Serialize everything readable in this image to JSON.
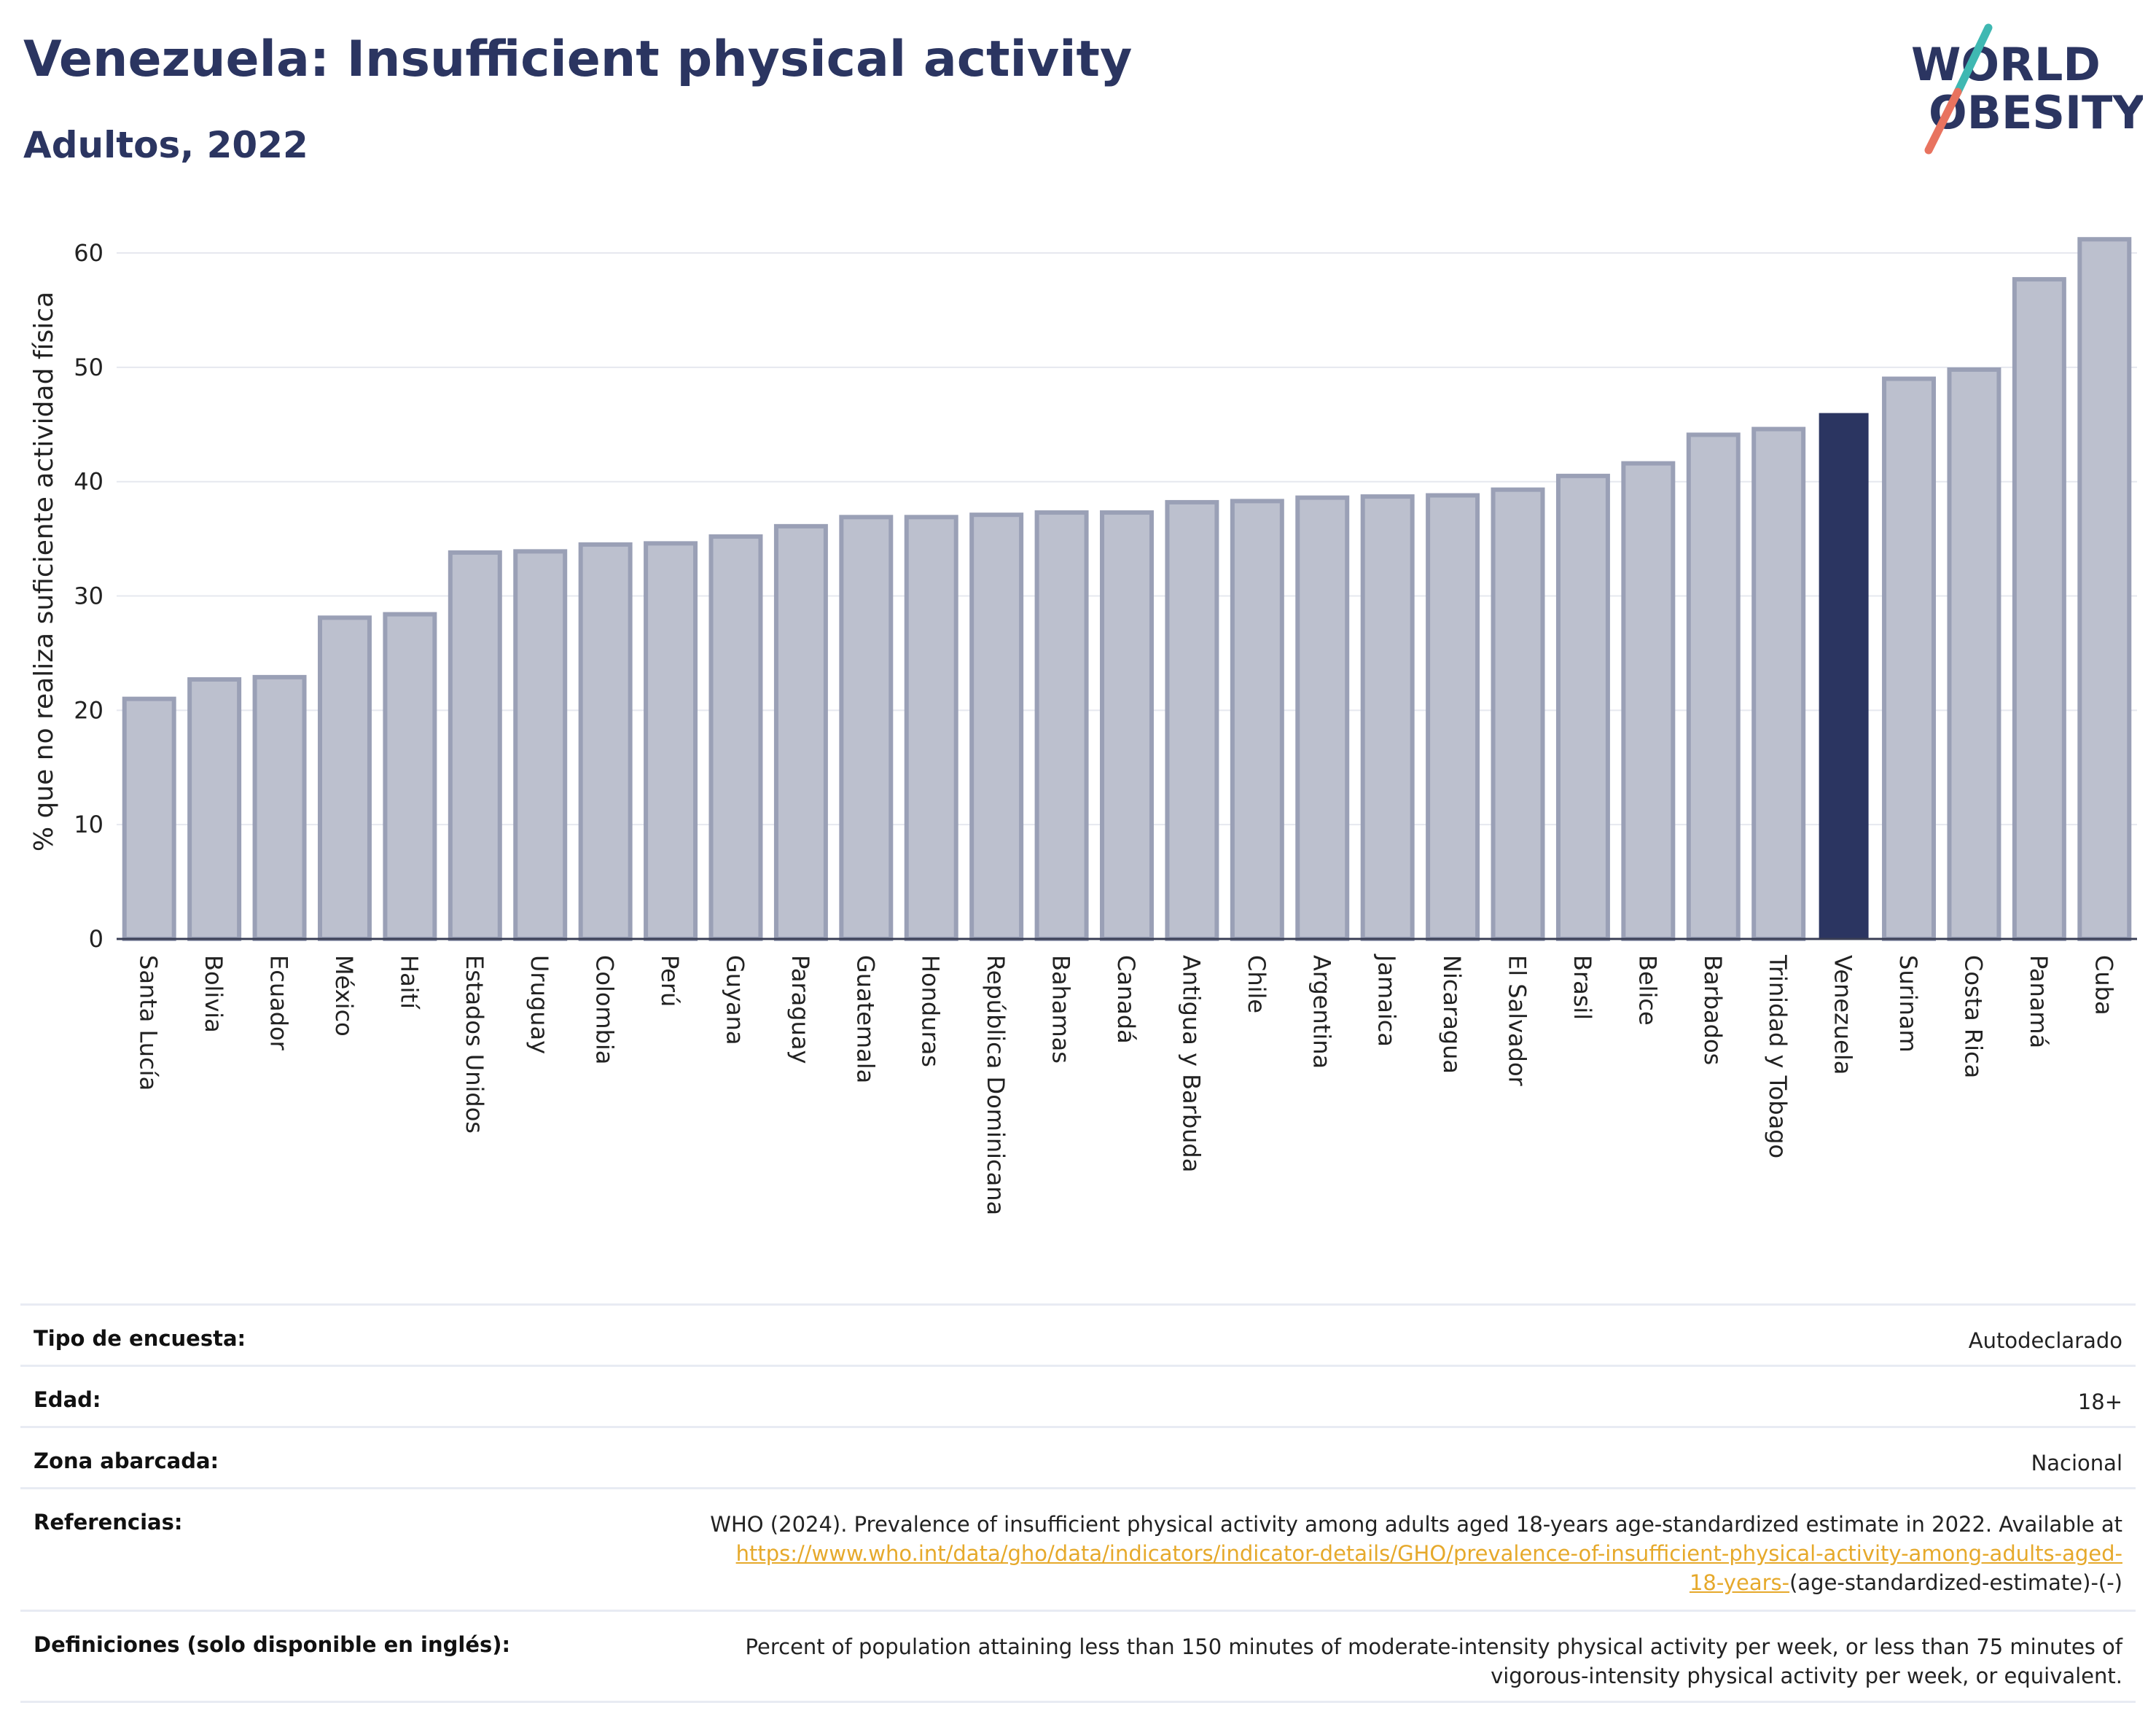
{
  "header": {
    "title": "Venezuela: Insufficient physical activity",
    "subtitle": "Adultos, 2022"
  },
  "logo": {
    "line1": "WORLD",
    "line2": "OBESITY"
  },
  "colors": {
    "bar_default": "#bcc0ce",
    "bar_default_border": "#9aa0b6",
    "bar_highlight": "#2b3561",
    "title": "#2b3561",
    "link": "#e6a92b",
    "logo_teal": "#3fb8b2",
    "logo_coral": "#e8735f"
  },
  "chart_data": {
    "type": "bar",
    "ylabel": "% que no realiza suficiente actividad física",
    "ylim": [
      0,
      63
    ],
    "yticks": [
      0,
      10,
      20,
      30,
      40,
      50,
      60
    ],
    "grid": true,
    "highlight": "Venezuela",
    "categories": [
      "Santa Lucía",
      "Bolivia",
      "Ecuador",
      "México",
      "Haití",
      "Estados Unidos",
      "Uruguay",
      "Colombia",
      "Perú",
      "Guyana",
      "Paraguay",
      "Guatemala",
      "Honduras",
      "República Dominicana",
      "Bahamas",
      "Canadá",
      "Antigua y Barbuda",
      "Chile",
      "Argentina",
      "Jamaica",
      "Nicaragua",
      "El Salvador",
      "Brasil",
      "Belice",
      "Barbados",
      "Trinidad y Tobago",
      "Venezuela",
      "Surinam",
      "Costa Rica",
      "Panamá",
      "Cuba"
    ],
    "values": [
      21.0,
      22.7,
      22.9,
      28.1,
      28.4,
      33.8,
      33.9,
      34.5,
      34.6,
      35.2,
      36.1,
      36.9,
      36.9,
      37.1,
      37.3,
      37.3,
      38.2,
      38.3,
      38.6,
      38.7,
      38.8,
      39.3,
      40.5,
      41.6,
      44.1,
      44.6,
      46.0,
      49.0,
      49.8,
      57.7,
      61.2
    ]
  },
  "info": {
    "rows": [
      {
        "label": "Tipo de encuesta:",
        "value": "Autodeclarado"
      },
      {
        "label": "Edad:",
        "value": "18+"
      },
      {
        "label": "Zona abarcada:",
        "value": "Nacional"
      }
    ],
    "references": {
      "label": "Referencias:",
      "text": "WHO (2024). Prevalence of insufficient physical activity among adults aged 18-years age-standardized estimate in 2022. Available at",
      "link_line1": "https://www.who.int/data/gho/data/indicators/indicator-details/GHO/prevalence-of-insufficient-physical-activity-among-adults-aged-",
      "link_line2": "18-years-",
      "suffix": "(age-standardized-estimate)-(-)"
    },
    "definitions": {
      "label": "Definiciones (solo disponible en inglés):",
      "line1": "Percent of population attaining less than 150 minutes of moderate-intensity physical activity per week, or less than 75 minutes of",
      "line2": "vigorous-intensity physical activity per week, or equivalent."
    }
  }
}
